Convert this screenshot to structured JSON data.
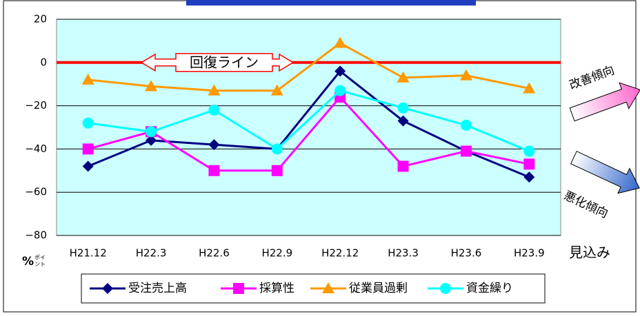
{
  "chart_data": {
    "type": "line",
    "categories": [
      "H21.12",
      "H22.3",
      "H22.6",
      "H22.9",
      "H22.12",
      "H23.3",
      "H23.6",
      "H23.9"
    ],
    "series": [
      {
        "name": "受注売上高",
        "color": "#000080",
        "marker": "diamond",
        "values": [
          -48,
          -36,
          -38,
          -40,
          -4,
          -27,
          -41,
          -53
        ]
      },
      {
        "name": "採算性",
        "color": "#ff00ff",
        "marker": "square",
        "values": [
          -40,
          -32,
          -50,
          -50,
          -16,
          -48,
          -41,
          -47
        ]
      },
      {
        "name": "従業員過剰",
        "color": "#ff9900",
        "marker": "triangle",
        "values": [
          -8,
          -11,
          -13,
          -13,
          9,
          -7,
          -6,
          -12
        ]
      },
      {
        "name": "資金繰り",
        "color": "#00ffff",
        "marker": "circle",
        "values": [
          -28,
          -32,
          -22,
          -40,
          -13,
          -21,
          -29,
          -41
        ]
      }
    ],
    "ylim": [
      -80,
      20
    ],
    "yticks": [
      20,
      0,
      {
        "value": -20,
        "label": "−20"
      },
      {
        "value": -40,
        "label": "−40"
      },
      {
        "value": -60,
        "label": "−60"
      },
      {
        "value": -80,
        "label": "−80"
      }
    ],
    "grid": true,
    "reference_line": {
      "value": 0,
      "label": "回復ライン",
      "color": "#ff0000"
    },
    "forecast_label": "見込み",
    "y_unit": "%",
    "y_unit_sub": [
      "ポイ",
      "ント"
    ],
    "annotations": [
      "改善傾向",
      "悪化傾向"
    ],
    "legend": "bottom"
  }
}
